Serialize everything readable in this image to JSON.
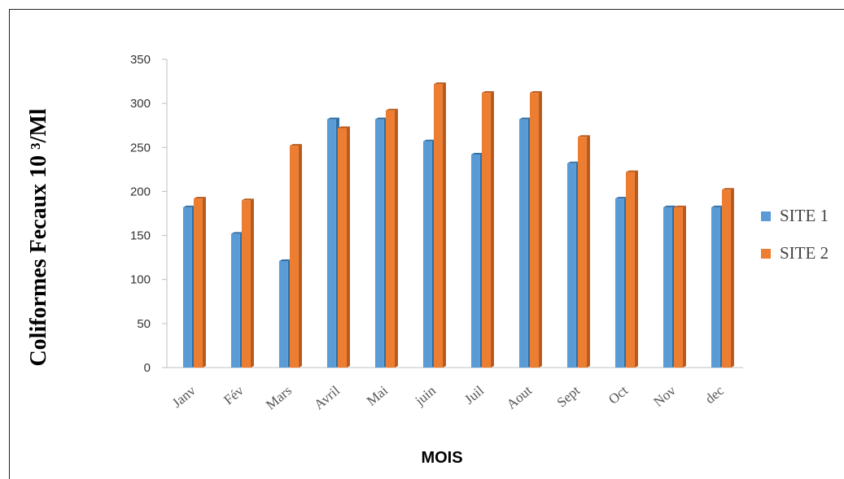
{
  "chart_data": {
    "type": "bar",
    "categories": [
      "Janv",
      "Fév",
      "Mars",
      "Avril",
      "Mai",
      "juin",
      "Juil",
      "Aout",
      "Sept",
      "Oct",
      "Nov",
      "dec"
    ],
    "series": [
      {
        "name": "SITE 1",
        "color": "#5b9bd5",
        "values": [
          182,
          152,
          121,
          282,
          282,
          257,
          242,
          282,
          232,
          192,
          182,
          182
        ]
      },
      {
        "name": "SITE 2",
        "color": "#ed7d31",
        "values": [
          192,
          190,
          252,
          272,
          292,
          322,
          312,
          312,
          262,
          222,
          182,
          202
        ]
      }
    ],
    "ylim": [
      0,
      350
    ],
    "yticks": [
      0,
      50,
      100,
      150,
      200,
      250,
      300,
      350
    ],
    "ylabel": "Coliformes Fecaux 10 ³/Ml",
    "xlabel": "MOIS",
    "legend_position": "right",
    "grid": false
  }
}
